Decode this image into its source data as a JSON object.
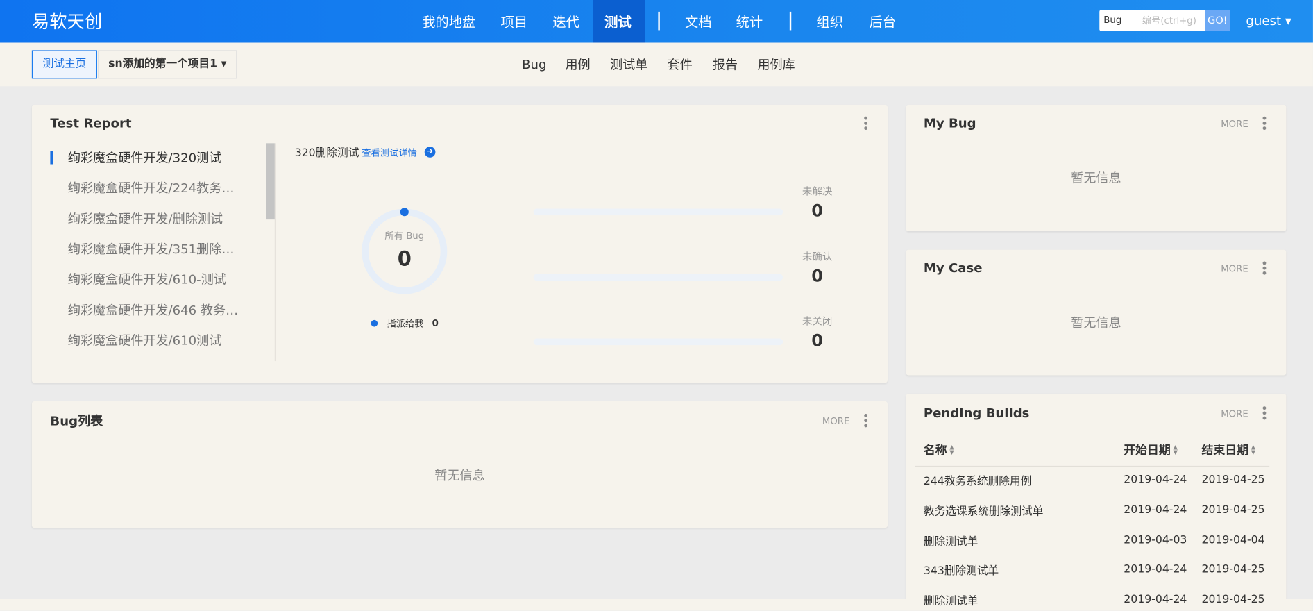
{
  "header": {
    "logo": "易软天创",
    "nav": [
      "我的地盘",
      "项目",
      "迭代",
      "测试",
      "文档",
      "统计",
      "组织",
      "后台"
    ],
    "active_nav": 3,
    "search_type": "Bug",
    "search_placeholder": "编号(ctrl+g)",
    "search_button": "GO!",
    "user": "guest"
  },
  "breadcrumb": {
    "home": "测试主页",
    "project": "sn添加的第一个项目1"
  },
  "subnav": [
    "Bug",
    "用例",
    "测试单",
    "套件",
    "报告",
    "用例库"
  ],
  "test_report": {
    "title": "Test Report",
    "items": [
      "绚彩魔盒硬件开发/320测试",
      "绚彩魔盒硬件开发/224教务…",
      "绚彩魔盒硬件开发/删除测试",
      "绚彩魔盒硬件开发/351删除…",
      "绚彩魔盒硬件开发/610-测试",
      "绚彩魔盒硬件开发/646 教务…",
      "绚彩魔盒硬件开发/610测试"
    ],
    "selected": 0,
    "detail_name": "320删除测试",
    "detail_link": "查看测试详情",
    "total_label": "所有 Bug",
    "total": 0,
    "assigned_label": "指派给我",
    "assigned": 0,
    "stats": [
      {
        "label": "未解决",
        "value": 0
      },
      {
        "label": "未确认",
        "value": 0
      },
      {
        "label": "未关闭",
        "value": 0
      }
    ]
  },
  "my_bug": {
    "title": "My Bug",
    "more": "MORE",
    "empty": "暂无信息"
  },
  "my_case": {
    "title": "My Case",
    "more": "MORE",
    "empty": "暂无信息"
  },
  "bug_list": {
    "title": "Bug列表",
    "more": "MORE",
    "empty": "暂无信息"
  },
  "pending_builds": {
    "title": "Pending Builds",
    "more": "MORE",
    "columns": [
      "名称",
      "开始日期",
      "结束日期"
    ],
    "rows": [
      [
        "244教务系统删除用例",
        "2019-04-24",
        "2019-04-25"
      ],
      [
        "教务选课系统删除测试单",
        "2019-04-24",
        "2019-04-25"
      ],
      [
        "删除测试单",
        "2019-04-03",
        "2019-04-04"
      ],
      [
        "343删除测试单",
        "2019-04-24",
        "2019-04-25"
      ],
      [
        "删除测试单",
        "2019-04-24",
        "2019-04-25"
      ]
    ]
  }
}
